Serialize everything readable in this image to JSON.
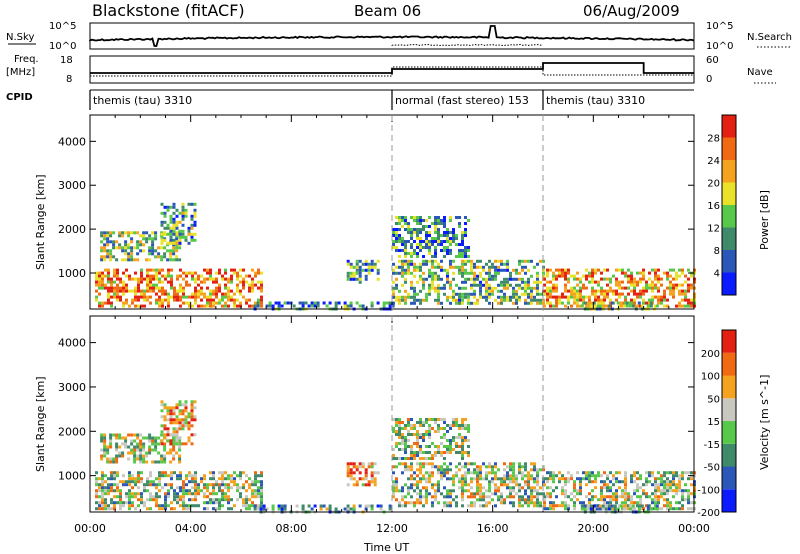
{
  "header": {
    "station": "Blackstone (fitACF)",
    "beam": "Beam 06",
    "date": "06/Aug/2009"
  },
  "top_panels": {
    "nsky_label": "N.Sky",
    "nsky_ticks": [
      "10^5",
      "10^0"
    ],
    "nsearch_label": "N.Search",
    "nsearch_ticks": [
      "10^5",
      "10^0"
    ],
    "freq_label": "Freq.",
    "freq_unit": "[MHz]",
    "freq_ticks": [
      "18",
      "8"
    ],
    "nave_label": "Nave",
    "nave_ticks": [
      "60",
      "0"
    ],
    "cpid_label": "CPID"
  },
  "cpid_segments": [
    {
      "label": "themis (tau) 3310",
      "start_hour": 0
    },
    {
      "label": "normal (fast stereo) 153",
      "start_hour": 12
    },
    {
      "label": "themis (tau) 3310",
      "start_hour": 18
    }
  ],
  "chart_data": [
    {
      "type": "heatmap",
      "name": "power",
      "xlabel": "Time UT",
      "ylabel": "Slant Range [km]",
      "xlim": [
        0,
        24
      ],
      "ylim": [
        180,
        4600
      ],
      "x_ticks": [
        "00:00",
        "04:00",
        "08:00",
        "12:00",
        "16:00",
        "20:00",
        "00:00"
      ],
      "y_ticks": [
        "1000",
        "2000",
        "3000",
        "4000"
      ],
      "colorbar": {
        "label": "Power [dB]",
        "ticks": [
          "4",
          "8",
          "12",
          "16",
          "20",
          "24",
          "28"
        ],
        "colors": [
          "#0a1cff",
          "#2b58b8",
          "#3f8a6a",
          "#58c84a",
          "#e9e228",
          "#f5a21e",
          "#f06a14",
          "#e32012"
        ]
      },
      "regions": [
        {
          "t0": 0.2,
          "t1": 6.8,
          "r0": 250,
          "r1": 1100,
          "level": 0.75
        },
        {
          "t0": 0.4,
          "t1": 3.5,
          "r0": 1300,
          "r1": 1950,
          "level": 0.45
        },
        {
          "t0": 2.8,
          "t1": 4.2,
          "r0": 1700,
          "r1": 2600,
          "level": 0.35
        },
        {
          "t0": 10.2,
          "t1": 11.4,
          "r0": 800,
          "r1": 1300,
          "level": 0.3
        },
        {
          "t0": 12.0,
          "t1": 18.0,
          "r0": 300,
          "r1": 1300,
          "level": 0.4
        },
        {
          "t0": 12.0,
          "t1": 15.0,
          "r0": 1400,
          "r1": 2300,
          "level": 0.3
        },
        {
          "t0": 18.0,
          "t1": 24.0,
          "r0": 250,
          "r1": 1100,
          "level": 0.7
        },
        {
          "t0": 6.5,
          "t1": 12.0,
          "r0": 180,
          "r1": 350,
          "level": 0.25
        },
        {
          "t0": 19.5,
          "t1": 22.5,
          "r0": 180,
          "r1": 350,
          "level": 0.45
        }
      ]
    },
    {
      "type": "heatmap",
      "name": "velocity",
      "xlabel": "Time UT",
      "ylabel": "Slant Range [km]",
      "xlim": [
        0,
        24
      ],
      "ylim": [
        180,
        4600
      ],
      "x_ticks": [
        "00:00",
        "04:00",
        "08:00",
        "12:00",
        "16:00",
        "20:00",
        "00:00"
      ],
      "y_ticks": [
        "1000",
        "2000",
        "3000",
        "4000"
      ],
      "colorbar": {
        "label": "Velocity [m s^-1]",
        "ticks": [
          "200",
          "100",
          "50",
          "15",
          "-15",
          "-50",
          "-100",
          "-200"
        ],
        "colors": [
          "#0a1cff",
          "#2b58b8",
          "#3f8a6a",
          "#58c84a",
          "#c8c8c0",
          "#f5a21e",
          "#f06a14",
          "#e32012"
        ]
      },
      "regions": [
        {
          "t0": 0.2,
          "t1": 6.8,
          "r0": 250,
          "r1": 1100,
          "level": 0.5
        },
        {
          "t0": 0.4,
          "t1": 3.5,
          "r0": 1300,
          "r1": 1950,
          "level": 0.55
        },
        {
          "t0": 2.8,
          "t1": 4.2,
          "r0": 1700,
          "r1": 2700,
          "level": 0.7
        },
        {
          "t0": 10.2,
          "t1": 11.4,
          "r0": 800,
          "r1": 1300,
          "level": 0.75
        },
        {
          "t0": 12.0,
          "t1": 18.0,
          "r0": 300,
          "r1": 1300,
          "level": 0.5
        },
        {
          "t0": 12.0,
          "t1": 15.0,
          "r0": 1400,
          "r1": 2300,
          "level": 0.5
        },
        {
          "t0": 18.0,
          "t1": 24.0,
          "r0": 250,
          "r1": 1100,
          "level": 0.5
        },
        {
          "t0": 6.5,
          "t1": 12.0,
          "r0": 180,
          "r1": 350,
          "level": 0.35
        },
        {
          "t0": 19.5,
          "t1": 22.5,
          "r0": 180,
          "r1": 350,
          "level": 0.35
        }
      ]
    }
  ]
}
